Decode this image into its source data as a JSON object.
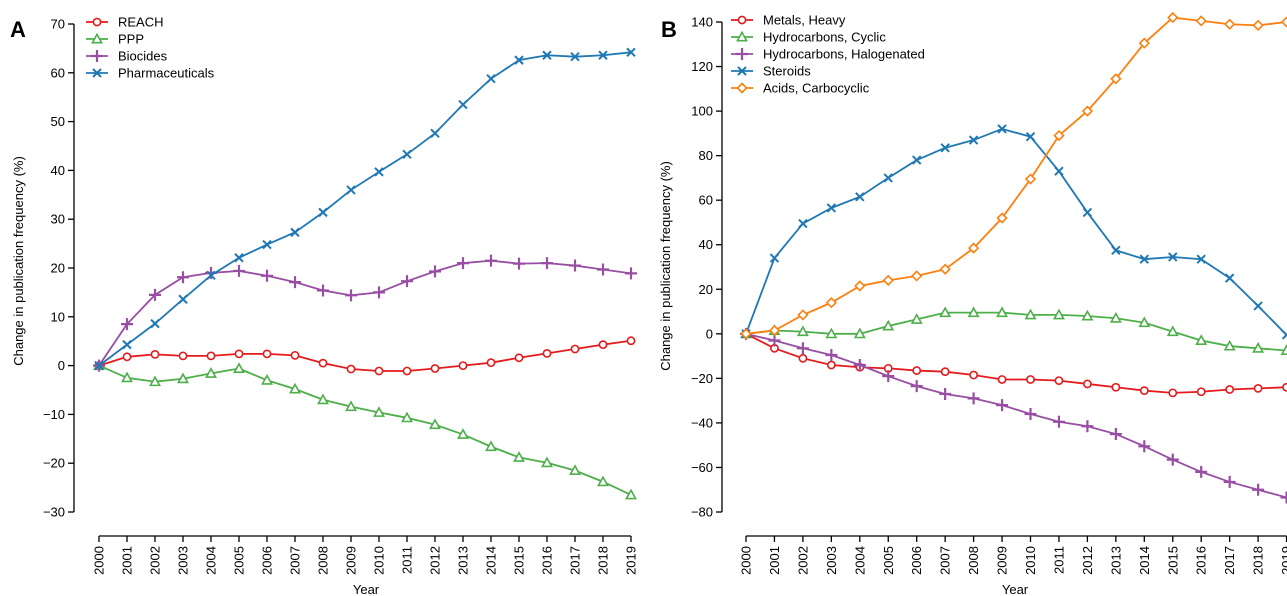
{
  "figure": {
    "panels": [
      {
        "letter": "A"
      },
      {
        "letter": "B"
      }
    ]
  },
  "chart_data": [
    {
      "type": "line",
      "panel": "A",
      "xlabel": "Year",
      "ylabel": "Change in publication frequency (%)",
      "ylim": [
        -30,
        70
      ],
      "yticks": [
        -30,
        -20,
        -10,
        0,
        10,
        20,
        30,
        40,
        50,
        60,
        70
      ],
      "ytick_labels": [
        "−30",
        "−20",
        "−10",
        "0",
        "10",
        "20",
        "30",
        "40",
        "50",
        "60",
        "70"
      ],
      "x": [
        "2000",
        "2001",
        "2002",
        "2003",
        "2004",
        "2005",
        "2006",
        "2007",
        "2008",
        "2009",
        "2010",
        "2011",
        "2012",
        "2013",
        "2014",
        "2015",
        "2016",
        "2017",
        "2018",
        "2019"
      ],
      "grid": false,
      "legend_position": "top-left",
      "series": [
        {
          "name": "REACH",
          "color": "#e41a1c",
          "marker": "circle",
          "values": [
            0,
            1.8,
            2.3,
            2.0,
            2.0,
            2.4,
            2.4,
            2.1,
            0.5,
            -0.7,
            -1.1,
            -1.1,
            -0.6,
            0.0,
            0.6,
            1.6,
            2.5,
            3.4,
            4.3,
            5.1
          ]
        },
        {
          "name": "PPP",
          "color": "#4daf4a",
          "marker": "triangle",
          "values": [
            0,
            -2.5,
            -3.3,
            -2.7,
            -1.6,
            -0.6,
            -3.0,
            -4.8,
            -7.0,
            -8.4,
            -9.6,
            -10.7,
            -12.1,
            -14.1,
            -16.6,
            -18.8,
            -19.9,
            -21.5,
            -23.8,
            -26.5
          ]
        },
        {
          "name": "Biocides",
          "color": "#984ea3",
          "marker": "plus",
          "values": [
            0,
            8.5,
            14.5,
            18.1,
            19.0,
            19.4,
            18.4,
            17.1,
            15.4,
            14.4,
            15.0,
            17.3,
            19.3,
            21.0,
            21.5,
            20.9,
            21.0,
            20.5,
            19.7,
            18.9
          ]
        },
        {
          "name": "Pharmaceuticals",
          "color": "#1f78b4",
          "marker": "cross",
          "values": [
            0,
            4.3,
            8.6,
            13.6,
            18.5,
            22.1,
            24.8,
            27.3,
            31.4,
            36.0,
            39.7,
            43.3,
            47.6,
            53.5,
            58.8,
            62.6,
            63.6,
            63.3,
            63.6,
            64.2
          ]
        }
      ]
    },
    {
      "type": "line",
      "panel": "B",
      "xlabel": "Year",
      "ylabel": "Change in publication frequency (%)",
      "ylim": [
        -80,
        140
      ],
      "yticks": [
        -80,
        -60,
        -40,
        -20,
        0,
        20,
        40,
        60,
        80,
        100,
        120,
        140
      ],
      "ytick_labels": [
        "−80",
        "−60",
        "−40",
        "−20",
        "0",
        "20",
        "40",
        "60",
        "80",
        "100",
        "120",
        "140"
      ],
      "x": [
        "2000",
        "2001",
        "2002",
        "2003",
        "2004",
        "2005",
        "2006",
        "2007",
        "2008",
        "2009",
        "2010",
        "2011",
        "2012",
        "2013",
        "2014",
        "2015",
        "2016",
        "2017",
        "2018",
        "2019"
      ],
      "grid": false,
      "legend_position": "top-left",
      "series": [
        {
          "name": "Metals, Heavy",
          "color": "#e41a1c",
          "marker": "circle",
          "values": [
            0,
            -6.5,
            -11,
            -14,
            -15,
            -15.5,
            -16.5,
            -17,
            -18.5,
            -20.5,
            -20.5,
            -21,
            -22.5,
            -24,
            -25.5,
            -26.5,
            -26,
            -25,
            -24.5,
            -24
          ]
        },
        {
          "name": "Hydrocarbons, Cyclic",
          "color": "#4daf4a",
          "marker": "triangle",
          "values": [
            0,
            1.5,
            1.0,
            0.0,
            0.0,
            3.5,
            6.5,
            9.5,
            9.5,
            9.5,
            8.5,
            8.5,
            8.0,
            7.0,
            5.0,
            1.0,
            -3.0,
            -5.5,
            -6.5,
            -7.5
          ]
        },
        {
          "name": "Hydrocarbons, Halogenated",
          "color": "#984ea3",
          "marker": "plus",
          "values": [
            0,
            -3.0,
            -6.5,
            -9.5,
            -14,
            -19,
            -23.5,
            -27,
            -29,
            -32,
            -36,
            -39.5,
            -41.5,
            -45,
            -50.5,
            -56.5,
            -62,
            -66.5,
            -70,
            -73.5
          ]
        },
        {
          "name": "Steroids",
          "color": "#1f78b4",
          "marker": "cross",
          "values": [
            0,
            34,
            49.5,
            56.5,
            61.5,
            70,
            78,
            83.5,
            87,
            92,
            88.5,
            73,
            54.5,
            37.5,
            33.5,
            34.5,
            33.5,
            25,
            12.5,
            -0.5
          ]
        },
        {
          "name": "Acids, Carbocyclic",
          "color": "#ff7f0e",
          "marker": "diamond",
          "values": [
            0,
            1.5,
            8.5,
            14,
            21.5,
            24,
            26,
            29,
            38.5,
            52,
            69.5,
            89,
            100,
            114.5,
            130.5,
            142,
            140.5,
            139,
            138.5,
            140
          ]
        }
      ]
    }
  ]
}
